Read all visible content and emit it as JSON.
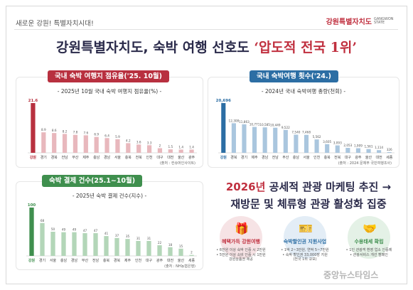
{
  "header": {
    "slogan": "새로운 강원! 특별자치시대!",
    "logo_main": "강원특별자치도",
    "logo_sub": "GANGWON STATE"
  },
  "headline": {
    "prefix": "강원특별자치도, 숙박 여행 선호도",
    "highlight": "‘압도적 전국 1위’"
  },
  "colors": {
    "red": "#b8303f",
    "blue": "#2c6ea4",
    "green": "#3f8f4e",
    "gray": "#c9c9c9",
    "lightred": "#e8b8bd",
    "lightblue": "#aac6de",
    "lightgreen": "#b3d6b8"
  },
  "panels": {
    "share": {
      "tab": "국내 숙박 여행지 점유율('25. 10월)",
      "subtitle": "- 2025년 10월 국내 숙박 여행지 점유율(%) -",
      "source": "(출처 : 컨슈머인사이트)"
    },
    "count": {
      "tab": "국내 숙박여행 횟수('24.)",
      "subtitle": "- 2024년 국내 숙박여행 총량(천회) -",
      "source": "(출처 : 2024 문체부 국민여행조사)"
    },
    "pay": {
      "tab": "숙박 결제 건수(25.1~10월)",
      "subtitle": "- 2025년 숙박 결제 건수(지수) -",
      "source": "(출처 : NH농협은행)"
    }
  },
  "chart_data": [
    {
      "type": "bar",
      "title": "- 2025년 10월 국내 숙박 여행지 점유율(%) -",
      "categories": [
        "강원",
        "경기",
        "경북",
        "전남",
        "부산",
        "제주",
        "충남",
        "경남",
        "서울",
        "충북",
        "전북",
        "인천",
        "대구",
        "대전",
        "울산",
        "광주"
      ],
      "values": [
        21.6,
        8.9,
        8.6,
        8.2,
        7.8,
        7.6,
        6.9,
        6.4,
        5.9,
        4.2,
        3.6,
        3.3,
        2.0,
        1.5,
        1.4,
        1.4
      ]
    },
    {
      "type": "bar",
      "title": "- 2024년 국내 숙박여행 총량(천회) -",
      "categories": [
        "강원",
        "경북",
        "경기",
        "제주",
        "경남",
        "전남",
        "부산",
        "충남",
        "서울",
        "인천",
        "충북",
        "전북",
        "대구",
        "광주",
        "울산",
        "대전",
        "세종"
      ],
      "values": [
        20696,
        12308,
        11863,
        10771,
        10585,
        10449,
        9522,
        7540,
        7468,
        5562,
        3605,
        3093,
        2053,
        1909,
        1561,
        1114,
        326
      ],
      "labels": [
        "20,696",
        "12,308",
        "11,863",
        "10,771",
        "10,585",
        "10,449",
        "9,522",
        "7,540",
        "7,468",
        "5,562",
        "3,605",
        "3,093",
        "2,053",
        "1,909",
        "1,561",
        "1,114",
        "326"
      ]
    },
    {
      "type": "bar",
      "title": "- 2025년 숙박 결제 건수(지수) -",
      "categories": [
        "강원",
        "경기",
        "서울",
        "충남",
        "경남",
        "부산",
        "전남",
        "충북",
        "경북",
        "제주",
        "인천",
        "대구",
        "광주",
        "대전",
        "울산",
        "세종"
      ],
      "values": [
        100,
        68,
        50,
        49,
        49,
        47,
        47,
        41,
        37,
        35,
        31,
        31,
        22,
        18,
        15,
        2
      ]
    }
  ],
  "promo": {
    "title1_year": "2026년",
    "title1_rest": "공세적 관광 마케팅 추진 →",
    "title2": "재방문 및 체류형 관광 활성화 집중",
    "items": [
      {
        "label": "혜택가득 강원여행",
        "note1": "• 6만원 이상 숙박 인증 시 2만원",
        "note2": "• 5만원 이상 소비 인증 시 1만원",
        "note3": "강원상품권 제공"
      },
      {
        "label": "숙박할인권 지원사업",
        "note1": "• 1박 2~3만원, 연박 5~7만원",
        "note2": "• 숙박 할인권 33,000장 지원",
        "note3": "(전국 1위 규모)"
      },
      {
        "label": "수용태세 확립",
        "note1": "• 1인 관광객 환영 업소 인증제",
        "note2": "• 관광서비스 개선 캠페인",
        "note3": ""
      }
    ]
  },
  "watermark": "중앙뉴스타임스"
}
